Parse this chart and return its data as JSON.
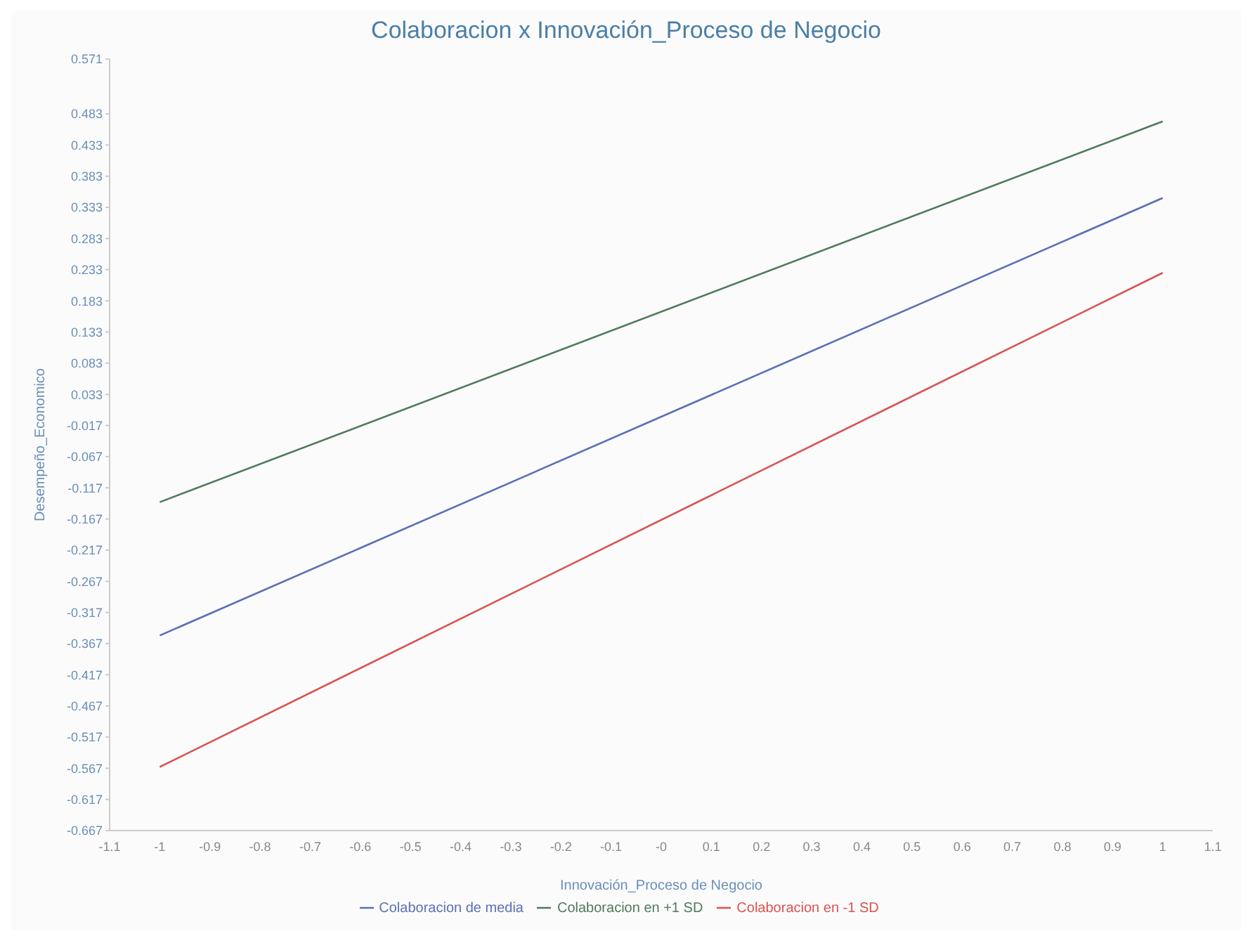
{
  "chart_data": {
    "type": "line",
    "title": "Colaboracion x Innovación_Proceso de Negocio",
    "xlabel": "Innovación_Proceso de Negocio",
    "ylabel": "Desempeño_Economico",
    "x": [
      -1,
      1
    ],
    "series": [
      {
        "name": "Colaboracion en -1 SD",
        "color": "#d9534f",
        "values": [
          -0.565,
          0.228
        ]
      },
      {
        "name": "Colaboracion  de media",
        "color": "#5b6fb5",
        "values": [
          -0.354,
          0.348
        ]
      },
      {
        "name": "Colaboracion en +1 SD",
        "color": "#4f7a5a",
        "values": [
          -0.14,
          0.471
        ]
      }
    ],
    "xlim": [
      -1.1,
      1.1
    ],
    "xticks": [
      -1.1,
      -1,
      -0.9,
      -0.8,
      -0.7,
      -0.6,
      -0.5,
      -0.4,
      -0.3,
      -0.2,
      -0.1,
      {
        "value": 0,
        "label": "-0"
      },
      0.1,
      0.2,
      0.3,
      0.4,
      0.5,
      0.6,
      0.7,
      0.8,
      0.9,
      1,
      1.1
    ],
    "ylim": [
      -0.667,
      0.571
    ],
    "yticks": [
      -0.667,
      -0.617,
      -0.567,
      -0.517,
      -0.467,
      -0.417,
      -0.367,
      -0.317,
      -0.267,
      -0.217,
      -0.167,
      -0.117,
      -0.067,
      -0.017,
      0.033,
      0.083,
      0.133,
      0.183,
      0.233,
      0.283,
      0.333,
      0.383,
      0.433,
      0.483,
      0.571
    ],
    "grid": false,
    "legend": "bottom",
    "marker": "none",
    "line_style": "solid"
  }
}
